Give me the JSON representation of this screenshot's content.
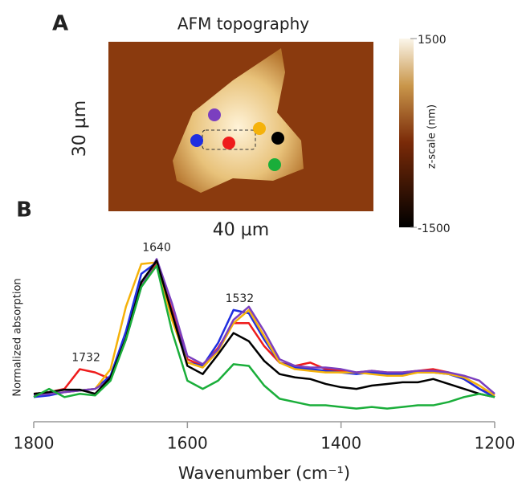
{
  "panels": [
    {
      "label": "A",
      "title": "AFM topography",
      "y_label": "30 µm",
      "x_label": "40 µm",
      "colorbar": {
        "label": "z-scale (nm)",
        "lim": [
          -1500,
          1500
        ],
        "ticks": [
          -1500,
          1500
        ]
      }
    }
  ],
  "chart_data": {
    "type": "line",
    "panel_label": "B",
    "x_label": "Wavenumber (cm⁻¹)",
    "y_label": "Normalized absorption",
    "xlim": [
      1800,
      1200
    ],
    "xticks": [
      1800,
      1600,
      1400,
      1200
    ],
    "ylim": [
      0,
      1.1
    ],
    "annotations": [
      1732,
      1640,
      1532
    ],
    "x": [
      1800,
      1780,
      1760,
      1740,
      1720,
      1700,
      1680,
      1660,
      1640,
      1620,
      1600,
      1580,
      1560,
      1540,
      1520,
      1500,
      1480,
      1460,
      1440,
      1420,
      1400,
      1380,
      1360,
      1340,
      1320,
      1300,
      1280,
      1260,
      1240,
      1220,
      1200
    ],
    "series": [
      {
        "color": "#ee1c1c",
        "values": [
          0.17,
          0.18,
          0.2,
          0.32,
          0.3,
          0.26,
          0.5,
          0.84,
          0.96,
          0.68,
          0.38,
          0.34,
          0.45,
          0.6,
          0.6,
          0.46,
          0.36,
          0.34,
          0.36,
          0.32,
          0.31,
          0.3,
          0.31,
          0.3,
          0.3,
          0.31,
          0.32,
          0.3,
          0.26,
          0.2,
          0.16
        ]
      },
      {
        "color": "#1f2ee0",
        "values": [
          0.15,
          0.16,
          0.18,
          0.19,
          0.2,
          0.28,
          0.55,
          0.9,
          0.97,
          0.66,
          0.36,
          0.34,
          0.48,
          0.68,
          0.66,
          0.5,
          0.36,
          0.33,
          0.32,
          0.31,
          0.3,
          0.29,
          0.3,
          0.29,
          0.29,
          0.3,
          0.3,
          0.29,
          0.26,
          0.2,
          0.15
        ]
      },
      {
        "color": "#f5b20a",
        "values": [
          0.17,
          0.17,
          0.18,
          0.19,
          0.2,
          0.32,
          0.7,
          0.96,
          0.97,
          0.62,
          0.36,
          0.33,
          0.43,
          0.6,
          0.68,
          0.52,
          0.36,
          0.32,
          0.31,
          0.3,
          0.3,
          0.3,
          0.29,
          0.28,
          0.28,
          0.3,
          0.3,
          0.29,
          0.27,
          0.22,
          0.16
        ]
      },
      {
        "color": "#7b3fbf",
        "values": [
          0.16,
          0.17,
          0.18,
          0.19,
          0.2,
          0.26,
          0.5,
          0.82,
          0.99,
          0.72,
          0.4,
          0.35,
          0.44,
          0.62,
          0.7,
          0.55,
          0.38,
          0.34,
          0.33,
          0.33,
          0.32,
          0.3,
          0.31,
          0.3,
          0.3,
          0.31,
          0.31,
          0.3,
          0.28,
          0.25,
          0.17
        ]
      },
      {
        "color": "#000000",
        "values": [
          0.17,
          0.18,
          0.195,
          0.195,
          0.17,
          0.27,
          0.51,
          0.85,
          0.98,
          0.66,
          0.34,
          0.29,
          0.41,
          0.54,
          0.49,
          0.37,
          0.29,
          0.27,
          0.26,
          0.23,
          0.21,
          0.2,
          0.22,
          0.23,
          0.24,
          0.24,
          0.26,
          0.23,
          0.2,
          0.17,
          0.15
        ]
      },
      {
        "color": "#1aae3a",
        "values": [
          0.15,
          0.2,
          0.15,
          0.17,
          0.16,
          0.25,
          0.5,
          0.82,
          0.95,
          0.55,
          0.25,
          0.2,
          0.25,
          0.35,
          0.34,
          0.22,
          0.14,
          0.12,
          0.1,
          0.1,
          0.09,
          0.08,
          0.09,
          0.08,
          0.09,
          0.1,
          0.1,
          0.12,
          0.15,
          0.17,
          0.15
        ]
      }
    ]
  }
}
